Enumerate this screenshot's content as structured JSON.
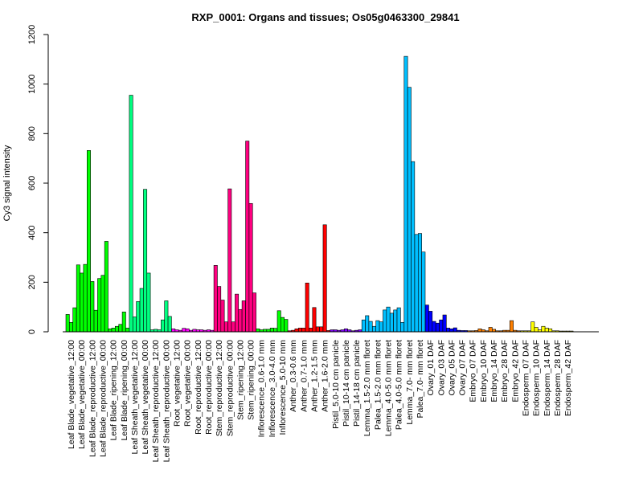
{
  "chart_data": {
    "type": "bar",
    "title": "RXP_0001: Organs and tissues; Os05g0463300_29841",
    "xlabel": "",
    "ylabel": "Cy3 signal intensity",
    "ylim": [
      0,
      1200
    ],
    "yticks": [
      0,
      200,
      400,
      600,
      800,
      1000,
      1200
    ],
    "legend": "none",
    "grid": false,
    "categories": [
      "Leaf Blade_vegetative_12:00",
      "Leaf Blade_vegetative_00:00",
      "Leaf Blade_reproductive_12:00",
      "Leaf Blade_reproductive_00:00",
      "Leaf Blade_ripening_12:00",
      "Leaf Blade_ripening_00:00",
      "Leaf Sheath_vegetative_12:00",
      "Leaf Sheath_vegetative_00:00",
      "Leaf Sheath_reproductive_12:00",
      "Leaf Sheath_reproductive_00:00",
      "Root_vegetative_12:00",
      "Root_vegetative_00:00",
      "Root_reproductive_12:00",
      "Root_reproductive_00:00",
      "Stem_reproductive_12:00",
      "Stem_reproductive_00:00",
      "Stem_ripening_12:00",
      "Stem_ripening_00:00",
      "Inflorescence_0.6-1.0 mm",
      "Inflorescence_3.0-4.0 mm",
      "Inflorescence_5.0-10 mm",
      "Anther_0.3-0.6 mm",
      "Anther_0.7-1.0 mm",
      "Anther_1.2-1.5 mm",
      "Anther_1.6-2.0 mm",
      "Pistil_5.0-10 cm panicle",
      "Pistil_10-14 cm panicle",
      "Pistil_14-18 cm panicle",
      "Lemma_1.5-2.0 mm floret",
      "Palea_1.5-2.0 mm floret",
      "Lemma_4.0-5.0 mm floret",
      "Palea_4.0-5.0 mm floret",
      "Lemma_7.0- mm floret",
      "Palea_7.0- mm floret",
      "Ovary_01 DAF",
      "Ovary_03 DAF",
      "Ovary_05 DAF",
      "Ovary_07 DAF",
      "Embryo_07 DAF",
      "Embryo_10 DAF",
      "Embryo_14 DAF",
      "Embryo_28 DAF",
      "Embryo_42 DAF",
      "Endosperm_07 DAF",
      "Endosperm_10 DAF",
      "Endosperm_14 DAF",
      "Endosperm_28 DAF",
      "Endosperm_42 DAF"
    ],
    "values": [
      [
        70,
        38,
        97
      ],
      [
        270,
        237,
        272
      ],
      [
        732,
        203,
        87
      ],
      [
        215,
        228,
        365
      ],
      [
        12,
        15,
        22
      ],
      [
        30,
        80,
        15
      ],
      [
        955,
        60,
        122
      ],
      [
        175,
        575,
        237
      ],
      [
        8,
        10,
        8
      ],
      [
        48,
        125,
        62
      ],
      [
        12,
        8,
        6
      ],
      [
        14,
        12,
        6
      ],
      [
        10,
        8,
        8
      ],
      [
        6,
        8,
        6
      ],
      [
        268,
        183,
        128
      ],
      [
        40,
        577,
        40
      ],
      [
        152,
        90,
        125
      ],
      [
        770,
        518,
        157
      ],
      [
        12,
        8,
        10
      ],
      [
        10,
        15,
        14
      ],
      [
        85,
        58,
        50
      ],
      [
        4,
        6,
        12
      ],
      [
        15,
        15,
        197
      ],
      [
        15,
        98,
        20
      ],
      [
        20,
        432,
        5
      ],
      [
        8,
        8,
        6
      ],
      [
        8,
        12,
        8
      ],
      [
        4,
        6,
        8
      ],
      [
        48,
        65,
        42
      ],
      [
        22,
        45,
        40
      ],
      [
        88,
        100,
        75
      ],
      [
        88,
        97,
        38
      ],
      [
        1112,
        987,
        687
      ],
      [
        393,
        397,
        322
      ],
      [
        108,
        83,
        42
      ],
      [
        35,
        48,
        68
      ],
      [
        15,
        12,
        16
      ],
      [
        6,
        5,
        5
      ],
      [
        4,
        4,
        5
      ],
      [
        12,
        8,
        4
      ],
      [
        18,
        10,
        4
      ],
      [
        4,
        6,
        6
      ],
      [
        45,
        6,
        4
      ],
      [
        4,
        4,
        4
      ],
      [
        40,
        18,
        8
      ],
      [
        22,
        15,
        12
      ],
      [
        4,
        4,
        3
      ],
      [
        3,
        3,
        3
      ]
    ],
    "colors": [
      "#00ff00",
      "#00ff00",
      "#00ff00",
      "#00ff00",
      "#00ff00",
      "#00ff00",
      "#00ff80",
      "#00ff80",
      "#00ff80",
      "#00ff80",
      "#ff00ff",
      "#ff00ff",
      "#ff00ff",
      "#ff00ff",
      "#ff0080",
      "#ff0080",
      "#ff0080",
      "#ff0080",
      "#00ff00",
      "#00ff00",
      "#00ff00",
      "#ff0000",
      "#ff0000",
      "#ff0000",
      "#ff0000",
      "#8000ff",
      "#8000ff",
      "#8000ff",
      "#00bfff",
      "#00bfff",
      "#00bfff",
      "#00bfff",
      "#00bfff",
      "#00bfff",
      "#0000ff",
      "#0000ff",
      "#0000ff",
      "#0000ff",
      "#ff8000",
      "#ff8000",
      "#ff8000",
      "#ff8000",
      "#ff8000",
      "#ffff00",
      "#ffff00",
      "#ffff00",
      "#ffff00",
      "#ffff00"
    ]
  }
}
